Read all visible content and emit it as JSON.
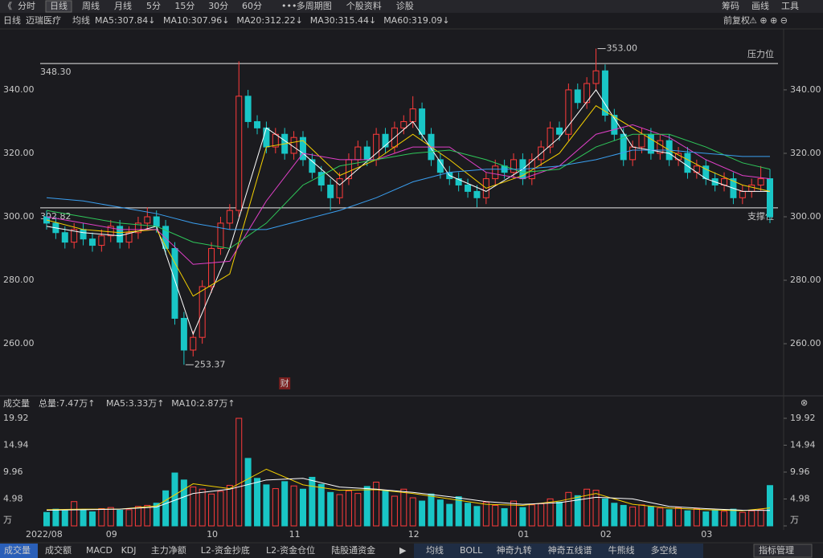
{
  "toolbar": {
    "tabs": [
      "分时",
      "日线",
      "周线",
      "月线",
      "5分",
      "15分",
      "30分",
      "60分",
      "多周期图",
      "个股资料",
      "诊股"
    ],
    "right": [
      "筹码",
      "画线",
      "工具"
    ]
  },
  "chart_header": {
    "period": "日线",
    "name": "迈瑞医疗",
    "ma_label": "均线",
    "ma": [
      "MA5:307.84↓",
      "MA10:307.96↓",
      "MA20:312.22↓",
      "MA30:315.44↓",
      "MA60:319.09↓"
    ],
    "adjust": "前复权"
  },
  "volume_header": {
    "title": "成交量",
    "items": [
      "总量:7.47万↑",
      "MA5:3.33万↑",
      "MA10:2.87万↑"
    ]
  },
  "bottom_tabs": {
    "left": [
      "成交量",
      "成交额",
      "MACD",
      "KDJ",
      "主力净额",
      "L2-资金抄底",
      "L2-资金仓位",
      "陆股通资金"
    ],
    "middle": [
      "均线",
      "BOLL",
      "神奇九转",
      "神奇五线谱",
      "牛熊线",
      "多空线"
    ],
    "right": "指标管理"
  },
  "chart_data": [
    {
      "type": "candlestick",
      "open": [
        300,
        298,
        295,
        292,
        296,
        293,
        291,
        294,
        297,
        292,
        295,
        298,
        300,
        297,
        290,
        268,
        258,
        262,
        278,
        290,
        298,
        302,
        338,
        330,
        328,
        322,
        326,
        320,
        325,
        318,
        314,
        310,
        306,
        312,
        318,
        322,
        318,
        326,
        322,
        328,
        330,
        334,
        326,
        318,
        314,
        312,
        310,
        308,
        306,
        312,
        316,
        314,
        318,
        312,
        318,
        322,
        328,
        326,
        340,
        336,
        342,
        346,
        332,
        326,
        318,
        322,
        326,
        320,
        324,
        318,
        320,
        314,
        316,
        312,
        310,
        312,
        306,
        308,
        310,
        312
      ],
      "high": [
        302,
        300,
        297,
        298,
        298,
        295,
        296,
        299,
        299,
        297,
        300,
        303,
        302,
        299,
        292,
        270,
        264,
        280,
        292,
        300,
        304,
        349,
        340,
        332,
        330,
        328,
        328,
        327,
        327,
        320,
        316,
        312,
        314,
        320,
        324,
        324,
        328,
        328,
        330,
        332,
        338,
        336,
        328,
        320,
        316,
        314,
        312,
        310,
        314,
        318,
        318,
        320,
        320,
        320,
        324,
        330,
        330,
        342,
        342,
        344,
        353,
        348,
        334,
        328,
        324,
        328,
        328,
        326,
        326,
        322,
        322,
        318,
        318,
        314,
        314,
        314,
        310,
        312,
        316,
        315
      ],
      "low": [
        296,
        293,
        290,
        290,
        291,
        289,
        289,
        292,
        290,
        290,
        293,
        296,
        295,
        288,
        266,
        253.37,
        256,
        260,
        276,
        288,
        296,
        300,
        328,
        326,
        320,
        320,
        318,
        318,
        316,
        312,
        308,
        302,
        304,
        310,
        316,
        316,
        316,
        320,
        320,
        326,
        328,
        324,
        316,
        312,
        310,
        308,
        306,
        303,
        304,
        310,
        312,
        312,
        310,
        310,
        316,
        320,
        324,
        324,
        334,
        334,
        340,
        330,
        324,
        316,
        316,
        320,
        318,
        318,
        316,
        316,
        312,
        312,
        310,
        308,
        308,
        304,
        304,
        306,
        308,
        298
      ],
      "close": [
        298,
        295,
        292,
        296,
        293,
        291,
        294,
        297,
        292,
        295,
        298,
        300,
        297,
        290,
        268,
        258,
        262,
        278,
        290,
        298,
        302,
        338,
        330,
        328,
        322,
        326,
        320,
        325,
        318,
        314,
        310,
        306,
        312,
        318,
        322,
        318,
        326,
        322,
        328,
        330,
        334,
        326,
        318,
        314,
        312,
        310,
        308,
        306,
        312,
        316,
        314,
        318,
        312,
        318,
        322,
        328,
        326,
        340,
        336,
        342,
        346,
        332,
        326,
        318,
        322,
        326,
        320,
        324,
        318,
        320,
        314,
        316,
        312,
        310,
        312,
        306,
        308,
        310,
        312,
        300
      ],
      "ylim": [
        245.6,
        358.2
      ],
      "yticks": [
        {
          "value": 340,
          "label": "340.00"
        },
        {
          "value": 320,
          "label": "320.00"
        },
        {
          "value": 300,
          "label": "300.00"
        },
        {
          "value": 280,
          "label": "280.00"
        },
        {
          "value": 260,
          "label": "260.00"
        }
      ],
      "levels": [
        {
          "value": 348.3,
          "label": "348.30",
          "name": "压力位"
        },
        {
          "value": 302.82,
          "label": "302.82",
          "name": "支撑位"
        }
      ],
      "annotations": [
        {
          "index": 60,
          "value": 353,
          "label": "353.00"
        },
        {
          "index": 15,
          "value": 253.37,
          "label": "253.37"
        }
      ],
      "event_marker": {
        "index": 26,
        "label": "财"
      },
      "ma_index": [
        0,
        4,
        8,
        12,
        16,
        20,
        24,
        28,
        32,
        36,
        40,
        44,
        48,
        52,
        56,
        60,
        64,
        68,
        72,
        76,
        79
      ],
      "series": [
        {
          "name": "MA5",
          "color": "#ffffff",
          "values": [
            297,
            295,
            294,
            297,
            263,
            290,
            328,
            320,
            310,
            320,
            330,
            313,
            308,
            315,
            325,
            340,
            322,
            320,
            312,
            308,
            308
          ]
        },
        {
          "name": "MA10",
          "color": "#f5d000",
          "values": [
            299,
            296,
            295,
            296,
            275,
            282,
            322,
            324,
            313,
            318,
            326,
            318,
            309,
            313,
            320,
            335,
            328,
            321,
            315,
            310,
            308
          ]
        },
        {
          "name": "MA20",
          "color": "#e040c8",
          "values": [
            300,
            298,
            296,
            296,
            285,
            286,
            305,
            320,
            318,
            318,
            322,
            322,
            314,
            312,
            316,
            326,
            329,
            325,
            318,
            313,
            312
          ]
        },
        {
          "name": "MA30",
          "color": "#2fc85a",
          "values": [
            302,
            300,
            298,
            297,
            292,
            290,
            298,
            310,
            316,
            318,
            320,
            321,
            318,
            314,
            315,
            322,
            326,
            326,
            322,
            317,
            315
          ]
        },
        {
          "name": "MA60",
          "color": "#3a9ff0",
          "values": [
            306,
            305,
            303,
            301,
            298,
            296,
            296,
            299,
            302,
            306,
            311,
            314,
            315,
            315,
            316,
            318,
            321,
            321,
            320,
            319,
            319
          ]
        }
      ],
      "x_labels": [
        {
          "index": 0,
          "label": "2022/08"
        },
        {
          "index": 7,
          "label": "09"
        },
        {
          "index": 18,
          "label": "10"
        },
        {
          "index": 27,
          "label": "11"
        },
        {
          "index": 40,
          "label": "12"
        },
        {
          "index": 52,
          "label": "01"
        },
        {
          "index": 61,
          "label": "02"
        },
        {
          "index": 72,
          "label": "03"
        }
      ]
    },
    {
      "type": "bar",
      "values": [
        2.5,
        3.1,
        2.8,
        4.5,
        3.0,
        2.6,
        3.2,
        3.4,
        2.9,
        3.0,
        3.6,
        3.8,
        4.2,
        6.5,
        9.8,
        8.5,
        7.2,
        6.8,
        5.9,
        6.4,
        7.5,
        19.92,
        12.5,
        8.8,
        7.6,
        6.9,
        8.2,
        7.4,
        6.8,
        9.0,
        7.7,
        6.2,
        5.8,
        6.5,
        6.0,
        7.3,
        8.1,
        6.6,
        5.5,
        6.8,
        5.2,
        4.6,
        5.9,
        4.8,
        4.0,
        5.4,
        4.2,
        3.6,
        4.4,
        3.8,
        3.2,
        4.6,
        3.4,
        3.9,
        4.1,
        5.0,
        4.4,
        6.2,
        5.6,
        6.8,
        6.6,
        5.0,
        4.2,
        3.8,
        3.5,
        3.9,
        3.6,
        3.3,
        3.0,
        3.4,
        2.8,
        3.2,
        2.6,
        2.9,
        2.7,
        3.1,
        2.5,
        2.8,
        3.0,
        7.47
      ],
      "ylim": [
        0,
        19.92
      ],
      "yticks": [
        19.92,
        14.94,
        9.96,
        4.98,
        {
          "value": 0,
          "label": "万"
        }
      ],
      "series": [
        {
          "name": "MA5",
          "color": "#f5d000",
          "values": [
            3.0,
            3.1,
            3.1,
            3.7,
            7.8,
            6.9,
            10.5,
            7.6,
            6.6,
            6.7,
            6.0,
            5.0,
            4.0,
            3.8,
            4.6,
            6.0,
            4.0,
            3.3,
            3.0,
            2.8,
            3.33
          ]
        },
        {
          "name": "MA10",
          "color": "#ffffff",
          "values": [
            2.9,
            3.0,
            3.1,
            3.5,
            6.0,
            6.8,
            8.5,
            8.8,
            7.2,
            6.8,
            6.2,
            5.4,
            4.5,
            4.0,
            4.3,
            5.3,
            5.0,
            3.6,
            3.2,
            2.9,
            2.87
          ]
        }
      ]
    }
  ]
}
